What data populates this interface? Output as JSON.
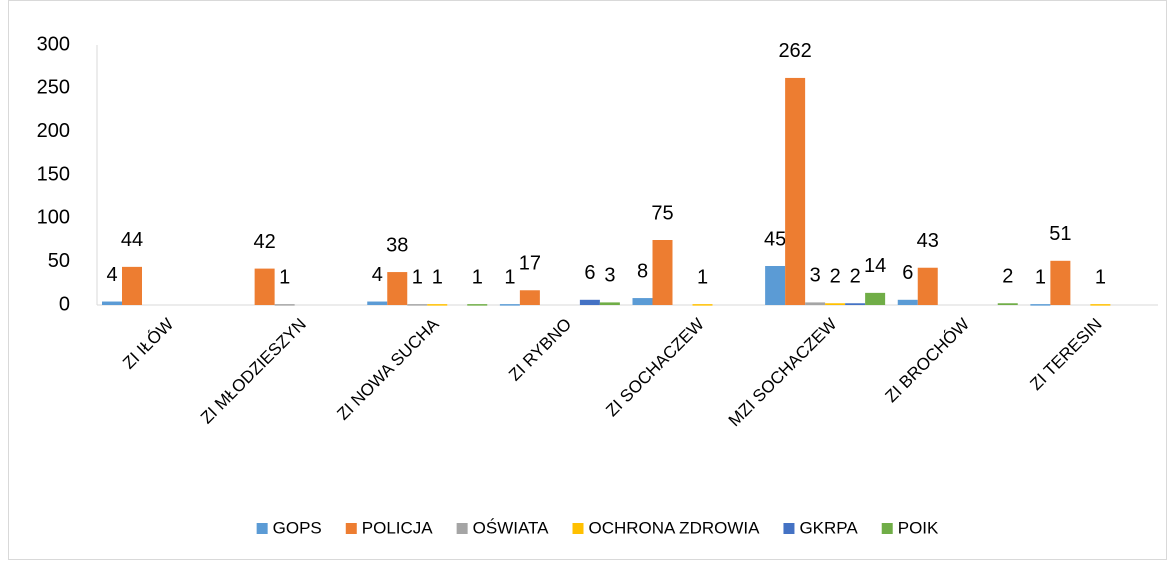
{
  "chart_data": {
    "type": "bar",
    "categories": [
      "ZI IŁÓW",
      "ZI MŁODZIESZYN",
      "ZI NOWA SUCHA",
      "ZI RYBNO",
      "ZI SOCHACZEW",
      "MZI SOCHACZEW",
      "ZI BROCHÓW",
      "ZI TERESIN"
    ],
    "series": [
      {
        "name": "GOPS",
        "color": "#5b9bd5",
        "values": [
          4,
          null,
          4,
          1,
          8,
          45,
          6,
          1
        ]
      },
      {
        "name": "POLICJA",
        "color": "#ed7d31",
        "values": [
          44,
          42,
          38,
          17,
          75,
          262,
          43,
          51
        ]
      },
      {
        "name": "OŚWIATA",
        "color": "#a5a5a5",
        "values": [
          null,
          1,
          1,
          null,
          null,
          3,
          null,
          null
        ]
      },
      {
        "name": "OCHRONA ZDROWIA",
        "color": "#ffc000",
        "values": [
          null,
          null,
          1,
          null,
          1,
          2,
          null,
          1
        ]
      },
      {
        "name": "GKRPA",
        "color": "#4472c4",
        "values": [
          null,
          null,
          null,
          6,
          null,
          2,
          null,
          null
        ]
      },
      {
        "name": "POIK",
        "color": "#70ad47",
        "values": [
          null,
          null,
          1,
          3,
          null,
          14,
          2,
          null
        ]
      }
    ],
    "ylim": [
      0,
      300
    ],
    "yticks": [
      0,
      50,
      100,
      150,
      200,
      250,
      300
    ],
    "legend": "bottom"
  }
}
